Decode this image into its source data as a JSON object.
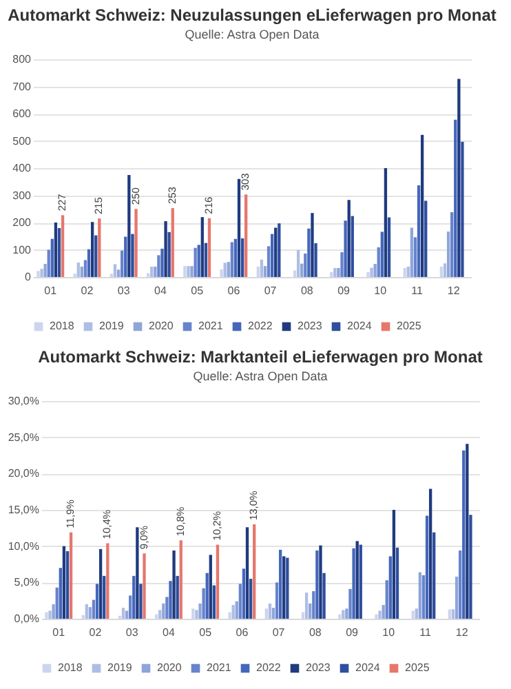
{
  "chart_data": [
    {
      "type": "bar",
      "title": "Automarkt Schweiz: Neuzulassungen eLieferwagen pro Monat",
      "subtitle": "Quelle: Astra Open Data",
      "categories": [
        "01",
        "02",
        "03",
        "04",
        "05",
        "06",
        "07",
        "08",
        "09",
        "10",
        "11",
        "12"
      ],
      "series": [
        {
          "name": "2018",
          "color": "#ccd5ee",
          "values": [
            22,
            12,
            12,
            14,
            40,
            28,
            38,
            24,
            18,
            18,
            33,
            38
          ]
        },
        {
          "name": "2019",
          "color": "#aebde4",
          "values": [
            30,
            53,
            47,
            38,
            40,
            52,
            64,
            99,
            33,
            34,
            38,
            50
          ]
        },
        {
          "name": "2020",
          "color": "#8ea5da",
          "values": [
            48,
            38,
            27,
            38,
            40,
            55,
            40,
            49,
            33,
            48,
            181,
            167
          ]
        },
        {
          "name": "2021",
          "color": "#6783cc",
          "values": [
            100,
            62,
            97,
            80,
            107,
            128,
            113,
            86,
            91,
            109,
            146,
            238
          ]
        },
        {
          "name": "2022",
          "color": "#4466bb",
          "values": [
            140,
            102,
            148,
            104,
            118,
            140,
            158,
            178,
            207,
            166,
            337,
            578
          ]
        },
        {
          "name": "2023",
          "color": "#1f3a7f",
          "values": [
            200,
            202,
            375,
            205,
            220,
            360,
            181,
            235,
            283,
            400,
            522,
            728
          ]
        },
        {
          "name": "2024",
          "color": "#2e4e9e",
          "values": [
            180,
            153,
            158,
            165,
            125,
            142,
            197,
            124,
            224,
            219,
            280,
            497
          ]
        },
        {
          "name": "2025",
          "color": "#e5776d",
          "values": [
            227,
            215,
            250,
            253,
            216,
            303,
            null,
            null,
            null,
            null,
            null,
            null
          ],
          "value_labels": [
            "227",
            "215",
            "250",
            "253",
            "216",
            "303",
            null,
            null,
            null,
            null,
            null,
            null
          ]
        }
      ],
      "ylim": [
        0,
        800
      ],
      "yticks": [
        0,
        100,
        200,
        300,
        400,
        500,
        600,
        700,
        800
      ],
      "grid": "y",
      "legend": "bottom"
    },
    {
      "type": "bar",
      "title": "Automarkt Schweiz: Marktanteil eLieferwagen pro Monat",
      "subtitle": "Quelle: Astra Open Data",
      "categories": [
        "01",
        "02",
        "03",
        "04",
        "05",
        "06",
        "07",
        "08",
        "09",
        "10",
        "11",
        "12"
      ],
      "series": [
        {
          "name": "2018",
          "color": "#ccd5ee",
          "values": [
            0.9,
            0.5,
            0.4,
            0.6,
            1.4,
            0.9,
            1.4,
            0.9,
            0.6,
            0.6,
            1.1,
            1.3
          ]
        },
        {
          "name": "2019",
          "color": "#aebde4",
          "values": [
            1.1,
            2.0,
            1.5,
            1.2,
            1.2,
            1.9,
            2.1,
            3.6,
            1.2,
            1.1,
            1.4,
            1.3
          ]
        },
        {
          "name": "2020",
          "color": "#8ea5da",
          "values": [
            2.0,
            1.6,
            1.1,
            2.1,
            2.1,
            2.4,
            1.5,
            2.1,
            1.4,
            1.9,
            6.4,
            5.8
          ]
        },
        {
          "name": "2021",
          "color": "#6783cc",
          "values": [
            4.3,
            2.6,
            3.2,
            3.0,
            4.2,
            4.8,
            5.0,
            3.8,
            4.1,
            5.3,
            6.0,
            9.4
          ]
        },
        {
          "name": "2022",
          "color": "#4466bb",
          "values": [
            7.0,
            4.8,
            5.9,
            5.2,
            6.3,
            6.9,
            9.5,
            9.4,
            9.7,
            8.6,
            14.2,
            23.2
          ]
        },
        {
          "name": "2023",
          "color": "#1f3a7f",
          "values": [
            10.0,
            9.6,
            12.6,
            9.4,
            8.8,
            12.6,
            8.6,
            10.1,
            10.7,
            15.0,
            17.9,
            24.1
          ]
        },
        {
          "name": "2024",
          "color": "#2e4e9e",
          "values": [
            9.3,
            5.9,
            4.8,
            5.9,
            4.6,
            5.5,
            8.4,
            6.3,
            10.2,
            9.8,
            11.9,
            14.3
          ]
        },
        {
          "name": "2025",
          "color": "#e5776d",
          "values": [
            11.9,
            10.4,
            9.0,
            10.8,
            10.2,
            13.0,
            null,
            null,
            null,
            null,
            null,
            null
          ],
          "value_labels": [
            "11,9%",
            "10,4%",
            "9,0%",
            "10,8%",
            "10,2%",
            "13,0%",
            null,
            null,
            null,
            null,
            null,
            null
          ]
        }
      ],
      "ylim": [
        0,
        30
      ],
      "yticks": [
        {
          "value": 0,
          "label": "0,0%"
        },
        {
          "value": 5,
          "label": "5,0%"
        },
        {
          "value": 10,
          "label": "10,0%"
        },
        {
          "value": 15,
          "label": "15,0%"
        },
        {
          "value": 20,
          "label": "20,0%"
        },
        {
          "value": 25,
          "label": "25,0%"
        },
        {
          "value": 30,
          "label": "30,0%"
        }
      ],
      "grid": "y",
      "legend": "bottom"
    }
  ]
}
